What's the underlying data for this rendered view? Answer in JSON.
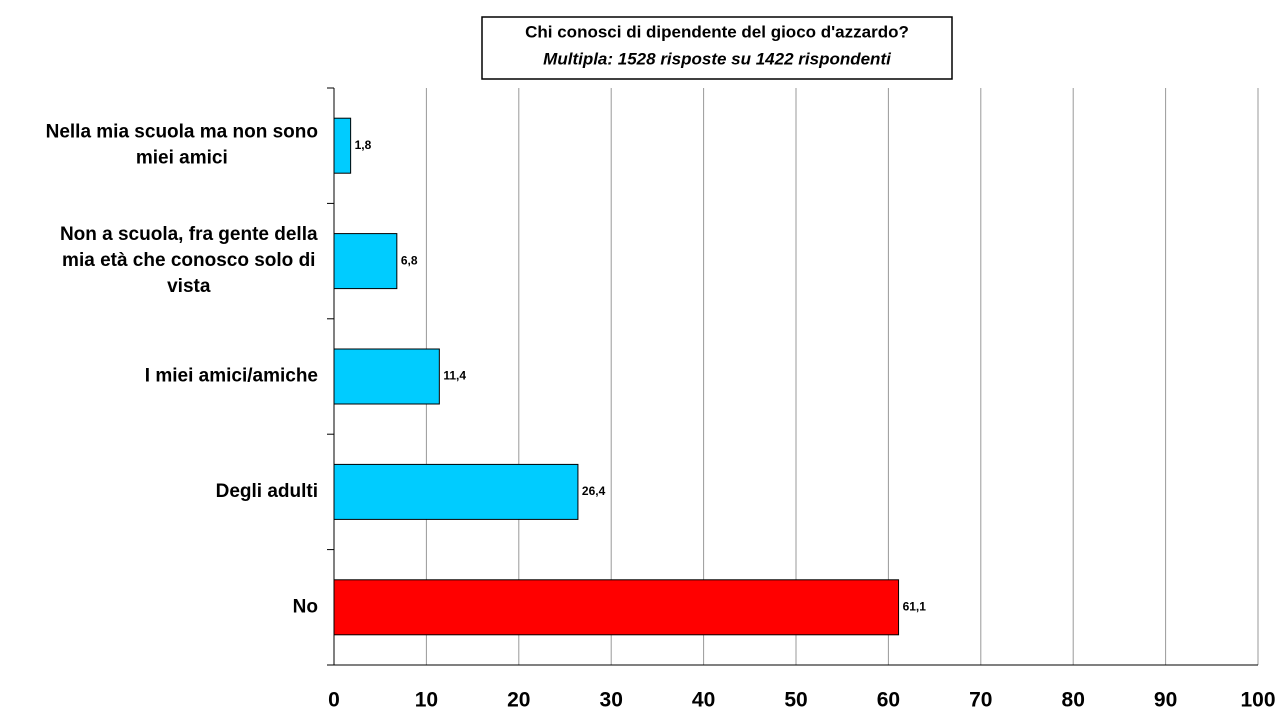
{
  "chart_data": {
    "type": "barh",
    "title": "Chi conosci di dipendente del gioco d'azzardo?",
    "subtitle": "Multipla: 1528 risposte su 1422 rispondenti",
    "categories": [
      "Nella mia scuola ma non sono miei amici",
      "Non a scuola, fra gente della mia età che conosco solo di vista",
      "I miei amici/amiche",
      "Degli adulti",
      "No"
    ],
    "values": [
      1.8,
      6.8,
      11.4,
      26.4,
      61.1
    ],
    "value_labels": [
      "1,8",
      "6,8",
      "11,4",
      "26,4",
      "61,1"
    ],
    "colors": [
      "#00ccff",
      "#00ccff",
      "#00ccff",
      "#00ccff",
      "#ff0000"
    ],
    "xlim": [
      0,
      100
    ],
    "xticks": [
      0,
      10,
      20,
      30,
      40,
      50,
      60,
      70,
      80,
      90,
      100
    ],
    "grid": true
  }
}
